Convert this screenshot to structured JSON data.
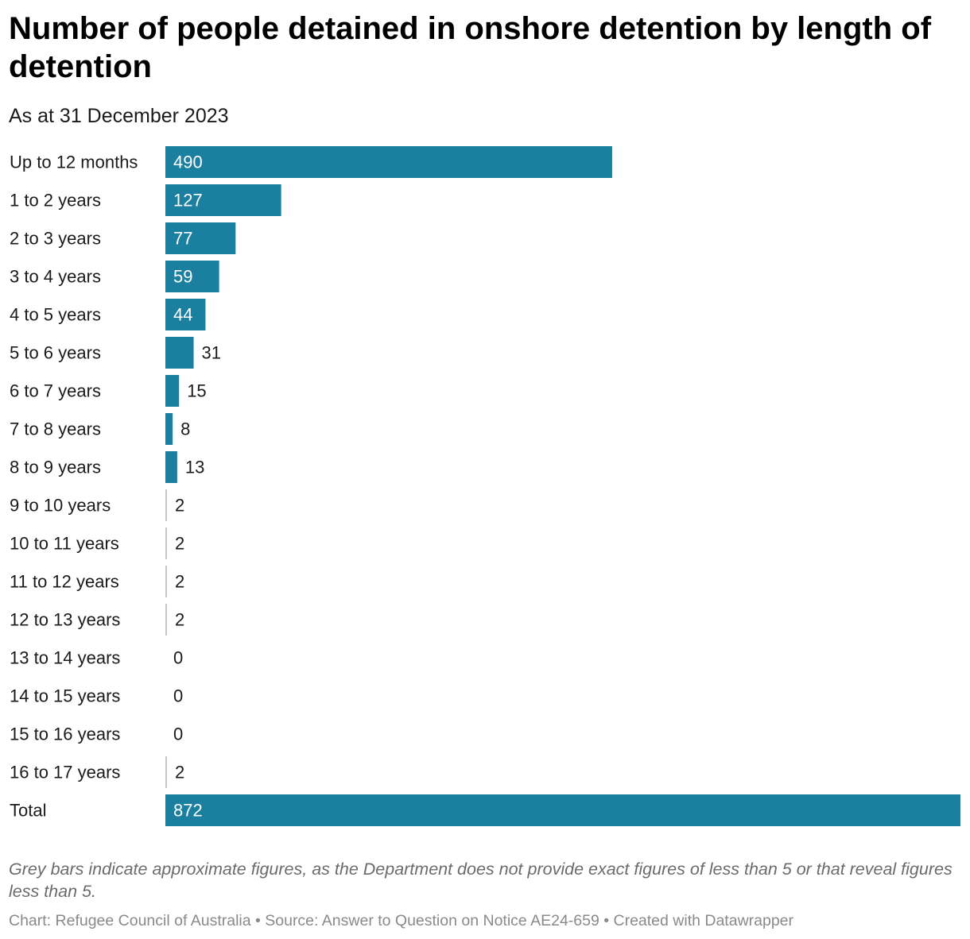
{
  "chart_data": {
    "type": "bar",
    "orientation": "horizontal",
    "title": "Number of people detained in onshore detention by length of detention",
    "subtitle": "As at 31 December 2023",
    "categories": [
      "Up to 12 months",
      "1 to 2 years",
      "2 to 3 years",
      "3 to 4 years",
      "4 to 5 years",
      "5 to 6 years",
      "6 to 7 years",
      "7 to 8 years",
      "8 to 9 years",
      "9 to 10 years",
      "10 to 11 years",
      "11 to 12 years",
      "12 to 13 years",
      "13 to 14 years",
      "14 to 15 years",
      "15 to 16 years",
      "16 to 17 years",
      "Total"
    ],
    "values": [
      490,
      127,
      77,
      59,
      44,
      31,
      15,
      8,
      13,
      2,
      2,
      2,
      2,
      0,
      0,
      0,
      2,
      872
    ],
    "approximate": [
      false,
      false,
      false,
      false,
      false,
      false,
      false,
      false,
      false,
      true,
      true,
      true,
      true,
      true,
      true,
      true,
      true,
      false
    ],
    "xlim": [
      0,
      872
    ],
    "grid": false,
    "colors": {
      "bar": "#1b7fa0",
      "approximate_bar": "#c8c8c8"
    },
    "note": "Grey bars indicate approximate figures, as the Department does not provide exact figures of less than 5 or that reveal figures less than 5.",
    "footer": "Chart: Refugee Council of Australia • Source: Answer to Question on Notice AE24-659 • Created with Datawrapper"
  }
}
